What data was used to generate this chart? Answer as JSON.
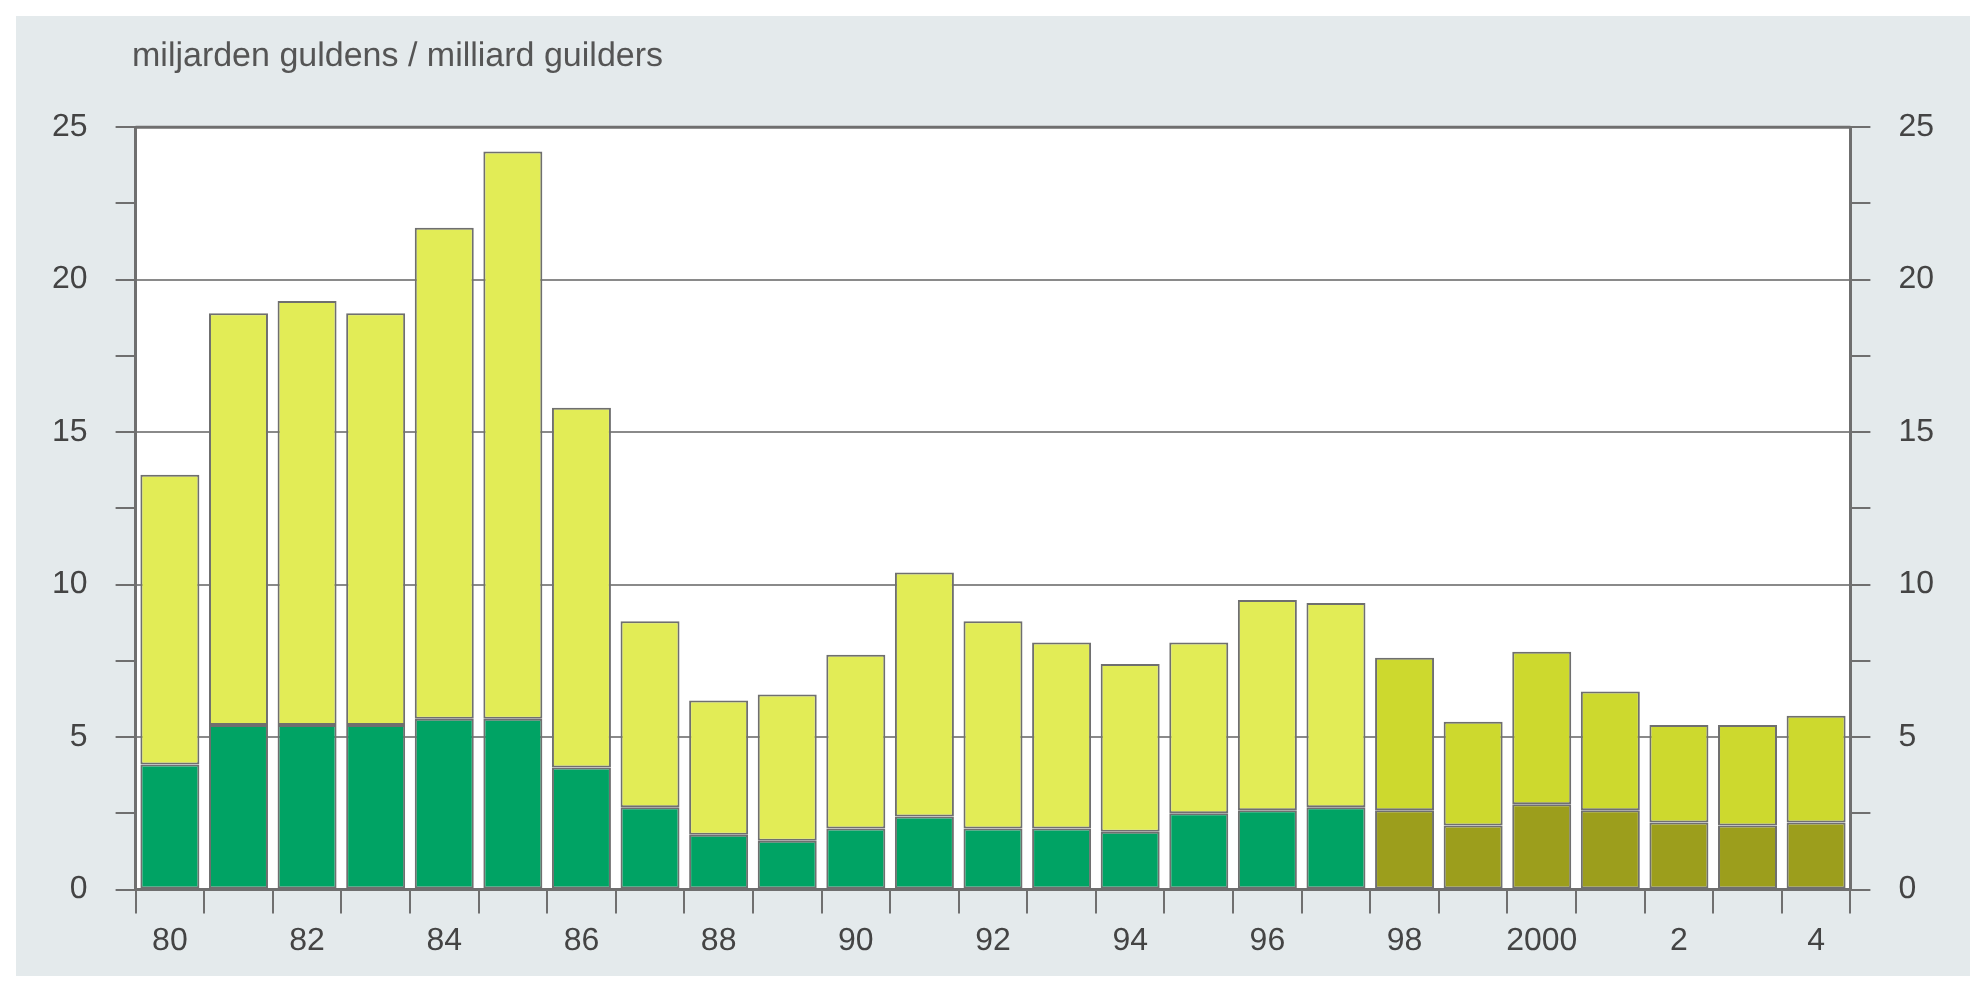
{
  "chart_data": {
    "type": "bar",
    "ylabel": "miljarden guldens / milliard guilders",
    "stacked": true,
    "categories": [
      "80",
      null,
      "82",
      null,
      "84",
      null,
      "86",
      null,
      "88",
      null,
      "90",
      null,
      "92",
      null,
      "94",
      null,
      "96",
      null,
      "98",
      null,
      "2000",
      null,
      "2",
      null,
      "4"
    ],
    "series": [
      {
        "colors": [
          "#00a364",
          "#00a364",
          "#00a364",
          "#00a364",
          "#00a364",
          "#00a364",
          "#00a364",
          "#00a364",
          "#00a364",
          "#00a364",
          "#00a364",
          "#00a364",
          "#00a364",
          "#00a364",
          "#00a364",
          "#00a364",
          "#00a364",
          "#00a364",
          "#9c9e1c",
          "#9c9e1c",
          "#9c9e1c",
          "#9c9e1c",
          "#9c9e1c",
          "#9c9e1c",
          "#9c9e1c"
        ],
        "values": [
          4.1,
          5.4,
          5.4,
          5.4,
          5.6,
          5.6,
          4.0,
          2.7,
          1.8,
          1.6,
          2.0,
          2.4,
          2.0,
          2.0,
          1.9,
          2.5,
          2.6,
          2.7,
          2.6,
          2.1,
          2.8,
          2.6,
          2.2,
          2.1,
          2.2
        ]
      },
      {
        "colors": [
          "#e2ec56",
          "#e2ec56",
          "#e2ec56",
          "#e2ec56",
          "#e2ec56",
          "#e2ec56",
          "#e2ec56",
          "#e2ec56",
          "#e2ec56",
          "#e2ec56",
          "#e2ec56",
          "#e2ec56",
          "#e2ec56",
          "#e2ec56",
          "#e2ec56",
          "#e2ec56",
          "#e2ec56",
          "#e2ec56",
          "#cdd92e",
          "#cdd92e",
          "#cdd92e",
          "#cdd92e",
          "#cdd92e",
          "#cdd92e",
          "#cdd92e"
        ],
        "values": [
          9.5,
          13.5,
          13.9,
          13.5,
          16.1,
          18.6,
          11.8,
          6.1,
          4.4,
          4.8,
          5.7,
          8.0,
          6.8,
          6.1,
          5.5,
          5.6,
          6.9,
          6.7,
          5.0,
          3.4,
          5.0,
          3.9,
          3.2,
          3.3,
          3.5
        ]
      }
    ],
    "ylim": [
      0,
      25
    ],
    "yticks": [
      0,
      {
        "value": 2.5,
        "label": null
      },
      5,
      {
        "value": 7.5,
        "label": null
      },
      10,
      {
        "value": 12.5,
        "label": null
      },
      15,
      {
        "value": 17.5,
        "label": null
      },
      20,
      {
        "value": 22.5,
        "label": null
      },
      25
    ],
    "y2lim": [
      0,
      25
    ],
    "y2ticks": [
      0,
      {
        "value": 2.5,
        "label": null
      },
      5,
      {
        "value": 7.5,
        "label": null
      },
      10,
      {
        "value": 12.5,
        "label": null
      },
      15,
      {
        "value": 17.5,
        "label": null
      },
      20,
      {
        "value": 22.5,
        "label": null
      },
      25
    ],
    "grid": "y",
    "legend": false
  }
}
